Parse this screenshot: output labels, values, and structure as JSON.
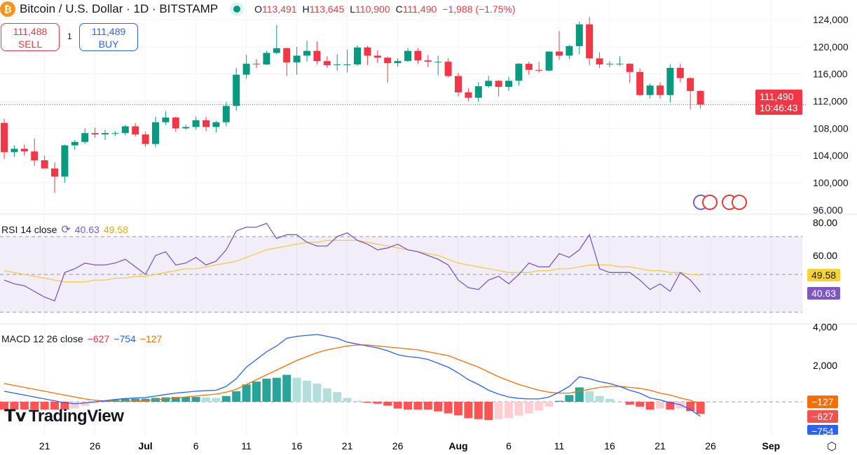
{
  "header": {
    "title": "Bitcoin / U.S. Dollar · 1D · BITSTAMP",
    "coin_glyph": "₿",
    "o_label": "O",
    "o": "113,491",
    "h_label": "H",
    "h": "113,645",
    "l_label": "L",
    "l": "110,900",
    "c_label": "C",
    "c": "111,490",
    "change": "−1,988 (−1.75%)"
  },
  "trade": {
    "sell_price": "111,488",
    "sell_label": "SELL",
    "qty": "1",
    "buy_price": "111,489",
    "buy_label": "BUY"
  },
  "price_tag": {
    "price": "111,490",
    "countdown": "10:46:43"
  },
  "rsi_legend": {
    "name": "RSI 14 close",
    "rsi": "40.63",
    "ma": "49.58"
  },
  "macd_legend": {
    "name": "MACD 12 26 close",
    "hist": "−627",
    "macd": "−754",
    "signal": "−127"
  },
  "logo": "TradingView",
  "colors": {
    "up": "#089981",
    "down": "#f23645",
    "rsi": "#7e57c2",
    "rsi_ma": "#f7c948",
    "macd": "#2962ff",
    "signal": "#ff6d00"
  },
  "chart_data": [
    {
      "type": "candlestick",
      "title": "Bitcoin / U.S. Dollar · 1D · BITSTAMP",
      "y_ticks": [
        "124,000",
        "120,000",
        "116,000",
        "112,000",
        "108,000",
        "104,000",
        "100,000",
        "96,000"
      ],
      "ylim": [
        95000,
        125000
      ],
      "x_ticks": [
        "21",
        "26",
        "Jul",
        "6",
        "11",
        "16",
        "21",
        "26",
        "Aug",
        "6",
        "11",
        "16",
        "21",
        "26",
        "Sep"
      ],
      "start_date": "Jun 17",
      "end_date": "Aug 25",
      "ohlc": [
        [
          108.8,
          109.4,
          103.5,
          104.5
        ],
        [
          104.5,
          105.5,
          103.8,
          105
        ],
        [
          105,
          105.6,
          104,
          104.6
        ],
        [
          104.6,
          106.5,
          102.5,
          103.3
        ],
        [
          103.3,
          104,
          102.3,
          102.1
        ],
        [
          102.1,
          103,
          98.5,
          100.9
        ],
        [
          100.9,
          105.6,
          100,
          105.5
        ],
        [
          105.5,
          106.3,
          104.8,
          106
        ],
        [
          106,
          108,
          105.7,
          107.3
        ],
        [
          107.3,
          108.1,
          106.6,
          107.1
        ],
        [
          107.1,
          107.8,
          106.3,
          107.3
        ],
        [
          107.3,
          107.6,
          106.9,
          107.3
        ],
        [
          107.3,
          108.5,
          107,
          108.3
        ],
        [
          108.3,
          108.8,
          106.8,
          107.1
        ],
        [
          107.1,
          107.5,
          105.3,
          105.7
        ],
        [
          105.7,
          109.7,
          105.2,
          108.9
        ],
        [
          108.9,
          110.5,
          108.5,
          109.6
        ],
        [
          109.6,
          109.7,
          107.5,
          108
        ],
        [
          108,
          108.5,
          107.8,
          108.2
        ],
        [
          108.2,
          109.7,
          107.8,
          109.2
        ],
        [
          109.2,
          109.7,
          107.6,
          108.2
        ],
        [
          108.2,
          109.1,
          107.4,
          108.9
        ],
        [
          108.9,
          111.9,
          108.3,
          111.3
        ],
        [
          111.3,
          116.9,
          110.6,
          115.9
        ],
        [
          115.9,
          118.8,
          115.3,
          117.5
        ],
        [
          117.5,
          118.2,
          116.9,
          117.4
        ],
        [
          117.4,
          119.4,
          117.3,
          119.1
        ],
        [
          119.1,
          123.2,
          118.9,
          119.8
        ],
        [
          119.8,
          119.9,
          115.7,
          117.7
        ],
        [
          117.7,
          120,
          115.9,
          118.7
        ],
        [
          118.7,
          120.9,
          117.8,
          119.4
        ],
        [
          119.4,
          120.8,
          117.4,
          117.9
        ],
        [
          117.9,
          118.6,
          116.9,
          117.3
        ],
        [
          117.3,
          118.9,
          116.5,
          117.4
        ],
        [
          117.4,
          119.6,
          116.2,
          117.4
        ],
        [
          117.4,
          120.2,
          117.2,
          119.9
        ],
        [
          119.9,
          120.1,
          117.3,
          118.7
        ],
        [
          118.7,
          119.5,
          117.6,
          118.4
        ],
        [
          118.4,
          118.5,
          114.7,
          117.6
        ],
        [
          117.6,
          118.3,
          117.1,
          117.9
        ],
        [
          117.9,
          119.8,
          117.8,
          119.4
        ],
        [
          119.4,
          119.8,
          117.5,
          118
        ],
        [
          118,
          118.8,
          117,
          117.8
        ],
        [
          117.8,
          118.7,
          115.8,
          117.8
        ],
        [
          117.8,
          118.3,
          115.5,
          115.7
        ],
        [
          115.7,
          116.2,
          112.7,
          113.3
        ],
        [
          113.3,
          113.9,
          112,
          112.5
        ],
        [
          112.5,
          114.8,
          111.9,
          114.2
        ],
        [
          114.2,
          115.7,
          114,
          115
        ],
        [
          115,
          115.1,
          112.7,
          114.1
        ],
        [
          114.1,
          115.6,
          113.5,
          115
        ],
        [
          115,
          117.6,
          114.3,
          117.5
        ],
        [
          117.5,
          117.8,
          115.9,
          116.6
        ],
        [
          116.6,
          117.8,
          116.2,
          116.5
        ],
        [
          116.5,
          119.3,
          116.4,
          119.3
        ],
        [
          119.3,
          122.3,
          118.1,
          118.7
        ],
        [
          118.7,
          120.3,
          118.2,
          120.1
        ],
        [
          120.1,
          123.7,
          118.9,
          123.3
        ],
        [
          123.3,
          124.4,
          117.3,
          118.3
        ],
        [
          118.3,
          119.2,
          116.9,
          117.4
        ],
        [
          117.4,
          117.9,
          117,
          117.5
        ],
        [
          117.5,
          118.6,
          117.2,
          117.5
        ],
        [
          117.5,
          117.6,
          114.7,
          116.3
        ],
        [
          116.3,
          116.8,
          112.7,
          112.9
        ],
        [
          112.9,
          114.6,
          112.4,
          114.3
        ],
        [
          114.3,
          114.8,
          112.4,
          112.9
        ],
        [
          112.9,
          117.4,
          111.8,
          116.9
        ],
        [
          116.9,
          117.5,
          114.8,
          115.4
        ],
        [
          115.4,
          115.5,
          110.8,
          113.5
        ],
        [
          113.5,
          113.6,
          110.9,
          111.5
        ]
      ]
    },
    {
      "type": "line",
      "title": "RSI 14 close",
      "y_ticks": [
        "80.00",
        "60.00"
      ],
      "ylim": [
        25,
        82
      ],
      "bands": [
        70,
        50,
        30
      ],
      "series": [
        {
          "name": "RSI",
          "values": [
            47,
            45,
            44,
            41,
            38,
            36,
            51,
            53,
            56,
            55,
            55,
            56,
            58,
            54,
            50,
            60,
            62,
            55,
            56,
            59,
            55,
            57,
            63,
            73,
            75,
            75,
            77,
            69,
            71,
            71,
            67,
            65,
            65,
            70,
            72,
            68,
            66,
            63,
            64,
            66,
            63,
            62,
            60,
            58,
            55,
            47,
            43,
            42,
            47,
            49,
            45,
            50,
            56,
            54,
            54,
            61,
            59,
            63,
            71,
            53,
            51,
            51,
            51,
            47,
            42,
            45,
            41,
            51,
            47,
            40.63
          ]
        },
        {
          "name": "RSI MA",
          "values": [
            52,
            51,
            50,
            49,
            48,
            47,
            46,
            46,
            46,
            47,
            47,
            48,
            48,
            49,
            49,
            50,
            51,
            52,
            53,
            53,
            54,
            55,
            56,
            57,
            59,
            61,
            63,
            64,
            65,
            66,
            67,
            67,
            68,
            68,
            68,
            68,
            67,
            66,
            65,
            64,
            63,
            62,
            61,
            60,
            58,
            56,
            55,
            54,
            53,
            52,
            51,
            51,
            51,
            52,
            52,
            53,
            53,
            54,
            55,
            55,
            55,
            54,
            54,
            53,
            52,
            52,
            51,
            51,
            50,
            49.58
          ]
        }
      ]
    },
    {
      "type": "line+bar",
      "title": "MACD 12 26 close",
      "y_ticks": [
        "4,000",
        "2,000"
      ],
      "ylim": [
        -900,
        4200
      ],
      "series": [
        {
          "name": "MACD",
          "values": [
            550,
            450,
            350,
            250,
            150,
            50,
            -50,
            -100,
            -60,
            0,
            60,
            120,
            170,
            200,
            220,
            300,
            380,
            450,
            500,
            550,
            580,
            600,
            800,
            1200,
            1800,
            2200,
            2600,
            2900,
            3300,
            3400,
            3450,
            3500,
            3400,
            3300,
            3100,
            3000,
            2900,
            2800,
            2650,
            2450,
            2350,
            2300,
            2200,
            2000,
            1800,
            1500,
            1150,
            900,
            600,
            400,
            250,
            180,
            150,
            150,
            250,
            500,
            800,
            1300,
            1200,
            1050,
            950,
            800,
            600,
            450,
            200,
            100,
            -50,
            -150,
            -400,
            -754
          ]
        },
        {
          "name": "Signal",
          "values": [
            950,
            850,
            750,
            650,
            550,
            450,
            350,
            250,
            150,
            80,
            40,
            20,
            20,
            40,
            60,
            100,
            150,
            200,
            250,
            300,
            350,
            400,
            500,
            650,
            900,
            1150,
            1400,
            1650,
            1900,
            2150,
            2350,
            2550,
            2700,
            2800,
            2900,
            2950,
            2950,
            2900,
            2850,
            2800,
            2750,
            2700,
            2600,
            2500,
            2400,
            2200,
            2000,
            1800,
            1550,
            1300,
            1100,
            900,
            750,
            600,
            500,
            450,
            450,
            550,
            650,
            750,
            800,
            800,
            750,
            700,
            600,
            450,
            350,
            200,
            80,
            -127
          ]
        }
      ]
    }
  ]
}
